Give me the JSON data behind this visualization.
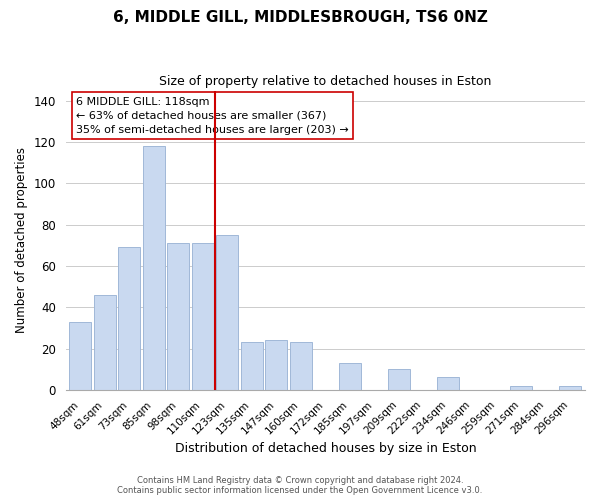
{
  "title": "6, MIDDLE GILL, MIDDLESBROUGH, TS6 0NZ",
  "subtitle": "Size of property relative to detached houses in Eston",
  "xlabel": "Distribution of detached houses by size in Eston",
  "ylabel": "Number of detached properties",
  "bar_labels": [
    "48sqm",
    "61sqm",
    "73sqm",
    "85sqm",
    "98sqm",
    "110sqm",
    "123sqm",
    "135sqm",
    "147sqm",
    "160sqm",
    "172sqm",
    "185sqm",
    "197sqm",
    "209sqm",
    "222sqm",
    "234sqm",
    "246sqm",
    "259sqm",
    "271sqm",
    "284sqm",
    "296sqm"
  ],
  "bar_values": [
    33,
    46,
    69,
    118,
    71,
    71,
    75,
    23,
    24,
    23,
    0,
    13,
    0,
    10,
    0,
    6,
    0,
    0,
    2,
    0,
    2
  ],
  "bar_color": "#c9d9f0",
  "bar_edge_color": "#a0b8d8",
  "vline_x": 6.0,
  "vline_color": "#cc0000",
  "annotation_text": "6 MIDDLE GILL: 118sqm\n← 63% of detached houses are smaller (367)\n35% of semi-detached houses are larger (203) →",
  "annotation_box_color": "#ffffff",
  "annotation_box_edgecolor": "#cc0000",
  "ylim": [
    0,
    145
  ],
  "yticks": [
    0,
    20,
    40,
    60,
    80,
    100,
    120,
    140
  ],
  "footer_line1": "Contains HM Land Registry data © Crown copyright and database right 2024.",
  "footer_line2": "Contains public sector information licensed under the Open Government Licence v3.0."
}
